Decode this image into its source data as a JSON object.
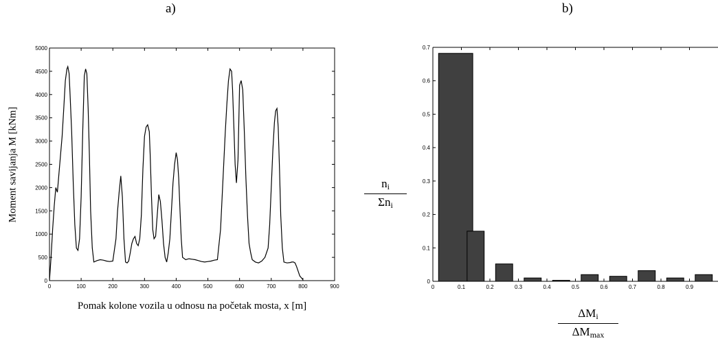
{
  "panel_a_label": "a)",
  "panel_b_label": "b)",
  "chart_data": [
    {
      "type": "line",
      "title": "",
      "xlabel": "Pomak kolone vozila u odnosu na početak mosta, x [m]",
      "ylabel": "Moment savijanja  M [kNm]",
      "xlim": [
        0,
        900
      ],
      "ylim": [
        0,
        5000
      ],
      "xticks": [
        0,
        100,
        200,
        300,
        400,
        500,
        600,
        700,
        800,
        900
      ],
      "yticks": [
        0,
        500,
        1000,
        1500,
        2000,
        2500,
        3000,
        3500,
        4000,
        4500,
        5000
      ],
      "grid": false,
      "series": [
        {
          "x": [
            0,
            5,
            10,
            15,
            20,
            25,
            30,
            35,
            40,
            45,
            50,
            55,
            58,
            62,
            65,
            70,
            75,
            80,
            85,
            90,
            95,
            100,
            105,
            110,
            114,
            118,
            122,
            126,
            130,
            135,
            140,
            150,
            160,
            170,
            180,
            190,
            200,
            210,
            215,
            220,
            225,
            230,
            235,
            240,
            245,
            250,
            255,
            260,
            265,
            270,
            275,
            280,
            285,
            290,
            295,
            300,
            305,
            310,
            315,
            318,
            322,
            326,
            330,
            335,
            340,
            345,
            350,
            355,
            360,
            365,
            370,
            375,
            380,
            385,
            390,
            395,
            400,
            404,
            408,
            412,
            416,
            420,
            430,
            440,
            450,
            460,
            470,
            480,
            490,
            500,
            510,
            520,
            530,
            540,
            545,
            550,
            555,
            560,
            565,
            570,
            575,
            578,
            582,
            586,
            590,
            595,
            600,
            605,
            610,
            615,
            620,
            625,
            630,
            635,
            640,
            650,
            660,
            670,
            680,
            690,
            695,
            700,
            705,
            710,
            714,
            718,
            722,
            726,
            730,
            735,
            740,
            750,
            760,
            765,
            770,
            775,
            780,
            785,
            790,
            795,
            800
          ],
          "y": [
            0,
            500,
            1100,
            1600,
            2000,
            1900,
            2300,
            2700,
            3100,
            3700,
            4300,
            4550,
            4600,
            4450,
            4000,
            3200,
            2100,
            1200,
            700,
            650,
            900,
            1800,
            3200,
            4400,
            4550,
            4450,
            3700,
            2700,
            1500,
            700,
            400,
            430,
            450,
            440,
            420,
            410,
            420,
            900,
            1500,
            1900,
            2250,
            1800,
            900,
            400,
            380,
            420,
            600,
            800,
            900,
            950,
            800,
            750,
            900,
            1400,
            2400,
            3100,
            3300,
            3350,
            3200,
            2700,
            1800,
            1100,
            900,
            950,
            1400,
            1850,
            1700,
            1300,
            800,
            500,
            400,
            600,
            900,
            1500,
            2100,
            2500,
            2750,
            2600,
            2200,
            1500,
            900,
            500,
            450,
            470,
            460,
            450,
            430,
            410,
            400,
            410,
            420,
            440,
            450,
            1100,
            1800,
            2500,
            3200,
            3800,
            4300,
            4550,
            4500,
            4100,
            3300,
            2500,
            2100,
            2600,
            4200,
            4300,
            4100,
            3200,
            2200,
            1400,
            800,
            600,
            450,
            400,
            380,
            420,
            500,
            700,
            1200,
            2000,
            2800,
            3400,
            3650,
            3700,
            3300,
            2400,
            1400,
            700,
            400,
            380,
            390,
            400,
            400,
            380,
            300,
            200,
            100,
            60,
            20
          ]
        }
      ]
    },
    {
      "type": "bar",
      "title": "",
      "xlabel": "ΔM_i / ΔM_max",
      "ylabel": "n_i / Σn_i",
      "xlim": [
        0,
        1
      ],
      "ylim": [
        0,
        0.7
      ],
      "xticks": [
        0,
        0.1,
        0.2,
        0.3,
        0.4,
        0.5,
        0.6,
        0.7,
        0.8,
        0.9
      ],
      "yticks": [
        0,
        0.1,
        0.2,
        0.3,
        0.4,
        0.5,
        0.6,
        0.7
      ],
      "grid": false,
      "bar_color": "#404040",
      "bars": [
        {
          "x0": 0.02,
          "x1": 0.14,
          "value": 0.682
        },
        {
          "x0": 0.12,
          "x1": 0.18,
          "value": 0.15
        },
        {
          "x0": 0.22,
          "x1": 0.28,
          "value": 0.052
        },
        {
          "x0": 0.32,
          "x1": 0.38,
          "value": 0.01
        },
        {
          "x0": 0.42,
          "x1": 0.48,
          "value": 0.003
        },
        {
          "x0": 0.52,
          "x1": 0.58,
          "value": 0.02
        },
        {
          "x0": 0.62,
          "x1": 0.68,
          "value": 0.015
        },
        {
          "x0": 0.72,
          "x1": 0.78,
          "value": 0.032
        },
        {
          "x0": 0.82,
          "x1": 0.88,
          "value": 0.01
        },
        {
          "x0": 0.92,
          "x1": 0.98,
          "value": 0.02
        }
      ]
    }
  ],
  "labels_b": {
    "y_num": "n",
    "y_num_sub": "i",
    "y_den": "Σn",
    "y_den_sub": "i",
    "x_num": "ΔM",
    "x_num_sub": "i",
    "x_den": "ΔM",
    "x_den_sub": "max"
  }
}
